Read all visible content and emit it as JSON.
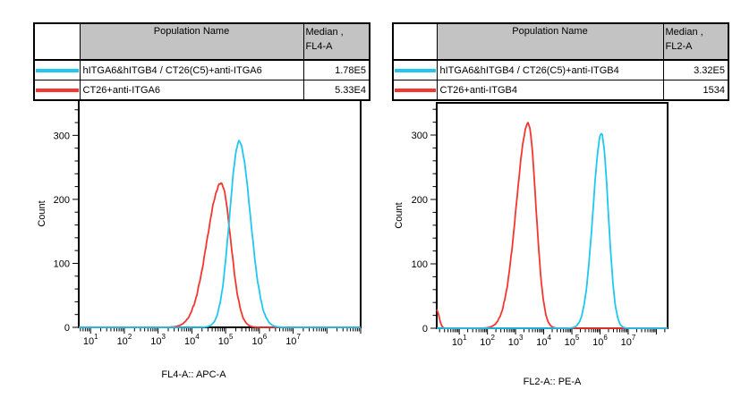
{
  "colors": {
    "cyan": "#1fc7f2",
    "red": "#f5352e",
    "table_header_bg": "#c3c3c3",
    "axis": "#000000"
  },
  "left_panel": {
    "table": {
      "population_header": "Population Name",
      "median_header_line1": "Median ,",
      "median_header_line2": "FL4-A",
      "rows": [
        {
          "swatch_color": "cyan",
          "name": "hITGA6&hITGB4 / CT26(C5)+anti-ITGA6",
          "median": "1.78E5"
        },
        {
          "swatch_color": "red",
          "name": "CT26+anti-ITGA6",
          "median": "5.33E4"
        }
      ]
    },
    "xlabel": "FL4-A:: APC-A",
    "ylabel": "Count"
  },
  "right_panel": {
    "table": {
      "population_header": "Population Name",
      "median_header_line1": "Median ,",
      "median_header_line2": "FL2-A",
      "rows": [
        {
          "swatch_color": "cyan",
          "name": "hITGA6&hITGB4 / CT26(C5)+anti-ITGB4",
          "median": "3.32E5"
        },
        {
          "swatch_color": "red",
          "name": "CT26+anti-ITGB4",
          "median": "1534"
        }
      ]
    },
    "xlabel": "FL2-A:: PE-A",
    "ylabel": "Count"
  },
  "chart_data": [
    {
      "type": "line",
      "subtype": "flow-histogram-overlay",
      "title": "",
      "xlabel": "FL4-A:: APC-A",
      "ylabel": "Count",
      "x_scale": "log10",
      "x_tick_exponents": [
        1,
        2,
        3,
        4,
        5,
        6,
        7
      ],
      "x_tick_labels": [
        "10^1",
        "10^2",
        "10^3",
        "10^4",
        "10^5",
        "10^6",
        "10^7"
      ],
      "x_range_log10": [
        0.65,
        9.0
      ],
      "ylim": [
        0,
        355
      ],
      "y_major_ticks": [
        0,
        100,
        200,
        300
      ],
      "y_minor_step": 20,
      "grid": false,
      "legend": "table-above",
      "series": [
        {
          "name": "hITGA6&hITGB4 / CT26(C5)+anti-ITGA6",
          "color": "cyan",
          "median_label": "1.78E5",
          "peak": {
            "log10_x": 5.4,
            "count": 290,
            "sigma_left": 0.28,
            "sigma_right": 0.33
          }
        },
        {
          "name": "CT26+anti-ITGA6",
          "color": "red",
          "median_label": "5.33E4",
          "peak": {
            "log10_x": 4.87,
            "count": 225,
            "sigma_left": 0.42,
            "sigma_right": 0.28
          }
        }
      ]
    },
    {
      "type": "line",
      "subtype": "flow-histogram-overlay",
      "title": "",
      "xlabel": "FL2-A:: PE-A",
      "ylabel": "Count",
      "x_scale": "log10",
      "x_tick_exponents": [
        1,
        2,
        3,
        4,
        5,
        6,
        7
      ],
      "x_tick_labels": [
        "10^1",
        "10^2",
        "10^3",
        "10^4",
        "10^5",
        "10^6",
        "10^7"
      ],
      "x_range_log10": [
        0.2,
        8.4
      ],
      "ylim": [
        0,
        350
      ],
      "y_major_ticks": [
        0,
        100,
        200,
        300
      ],
      "y_minor_step": 20,
      "grid": false,
      "legend": "table-above",
      "series": [
        {
          "name": "hITGA6&hITGB4 / CT26(C5)+anti-ITGB4",
          "color": "cyan",
          "median_label": "3.32E5",
          "peak": {
            "log10_x": 6.05,
            "count": 302,
            "sigma_left": 0.3,
            "sigma_right": 0.24
          }
        },
        {
          "name": "CT26+anti-ITGB4",
          "color": "red",
          "median_label": "1534",
          "peak": {
            "log10_x": 3.45,
            "count": 318,
            "sigma_left": 0.42,
            "sigma_right": 0.27
          },
          "edge_spike": {
            "log10_x": 0.2,
            "count": 28,
            "sigma": 0.09
          }
        }
      ]
    }
  ]
}
